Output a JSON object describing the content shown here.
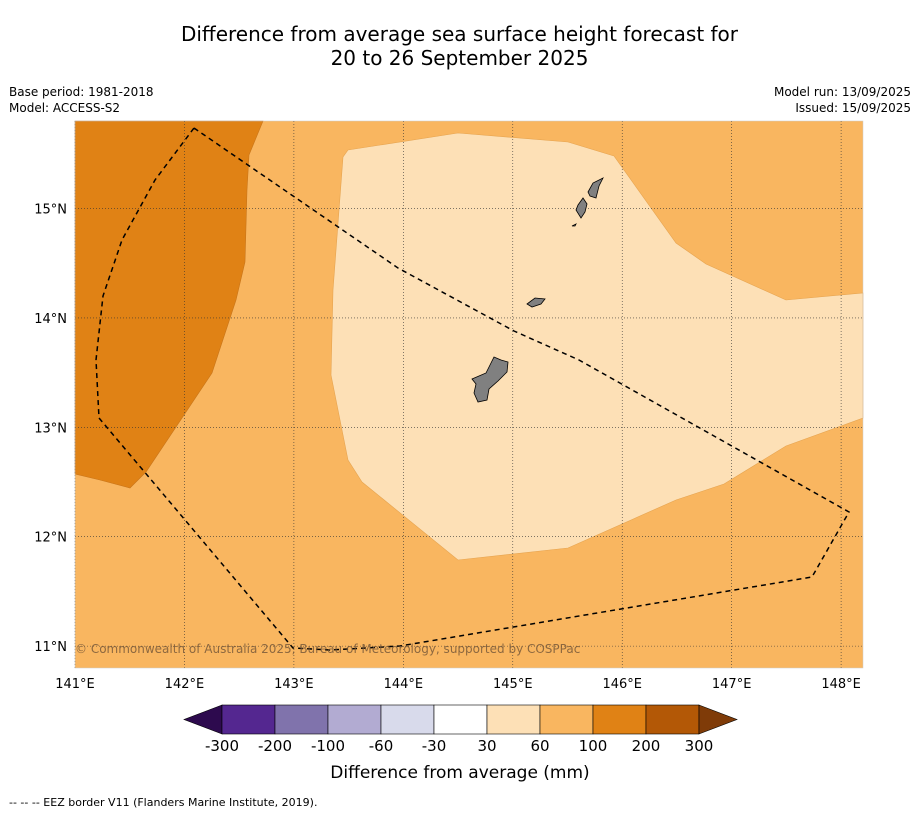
{
  "title": {
    "line1": "Difference from average sea surface height forecast for",
    "line2": "20 to 26 September 2025"
  },
  "meta": {
    "base_period": "Base period: 1981-2018",
    "model": "Model: ACCESS-S2",
    "model_run": "Model run: 13/09/2025",
    "issued": "Issued: 15/09/2025"
  },
  "map": {
    "lon_range": [
      141,
      148.2
    ],
    "lat_range": [
      10.8,
      15.8
    ],
    "lon_ticks": [
      "141°E",
      "142°E",
      "143°E",
      "144°E",
      "145°E",
      "146°E",
      "147°E",
      "148°E"
    ],
    "lat_ticks": [
      "15°N",
      "14°N",
      "13°N",
      "12°N",
      "11°N"
    ],
    "copyright": "© Commonwealth of Australia 2025, Bureau of Meteorology, supported by COSPPac",
    "regions": [
      {
        "name": "30 to 60 mm",
        "color": "#fde0b6"
      },
      {
        "name": "60 to 100 mm",
        "color": "#f9b660"
      },
      {
        "name": "100 to 200 mm",
        "color": "#e08215"
      }
    ],
    "land_color": "#808080"
  },
  "legend": {
    "label": "Difference from average (mm)",
    "ticks": [
      "-300",
      "-200",
      "-100",
      "-60",
      "-30",
      "30",
      "60",
      "100",
      "200",
      "300"
    ],
    "colors": [
      "#2d0a4e",
      "#542790",
      "#8073ac",
      "#b2abd2",
      "#d8daeb",
      "#ffffff",
      "#fde0b6",
      "#f9b660",
      "#e08215",
      "#b35806",
      "#7f3b08"
    ]
  },
  "footer": "-- -- -- EEZ border V11 (Flanders Marine Institute, 2019)."
}
